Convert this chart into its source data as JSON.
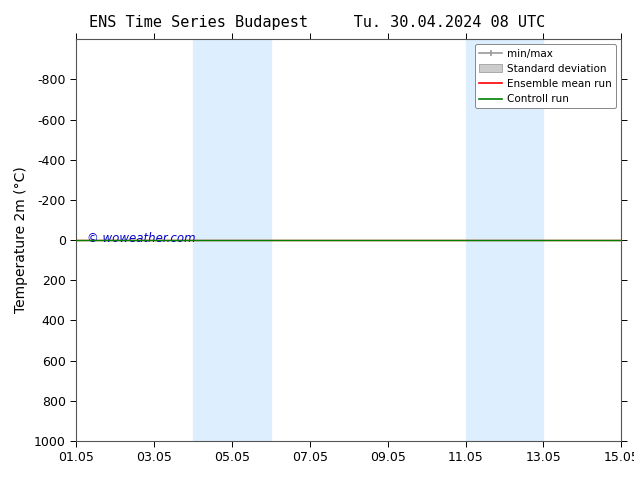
{
  "title_left": "ENS Time Series Budapest",
  "title_right": "Tu. 30.04.2024 08 UTC",
  "ylabel": "Temperature 2m (°C)",
  "ylim": [
    -1000,
    1000
  ],
  "yticks": [
    -800,
    -600,
    -400,
    -200,
    0,
    200,
    400,
    600,
    800,
    1000
  ],
  "xticks_labels": [
    "01.05",
    "03.05",
    "05.05",
    "07.05",
    "09.05",
    "11.05",
    "13.05",
    "15.05"
  ],
  "xticks_pos": [
    0,
    2,
    4,
    6,
    8,
    10,
    12,
    14
  ],
  "xlim": [
    0,
    14
  ],
  "shaded_regions": [
    [
      3.0,
      4.0
    ],
    [
      4.0,
      5.0
    ],
    [
      10.0,
      11.0
    ],
    [
      11.0,
      12.0
    ]
  ],
  "shaded_color": "#ddeeff",
  "line_y": 0,
  "ensemble_mean_color": "#ff0000",
  "control_run_color": "#008000",
  "minmax_color": "#999999",
  "stddev_color": "#cccccc",
  "watermark": "© woweather.com",
  "watermark_color": "#0000cc",
  "background_color": "#ffffff",
  "title_fontsize": 11,
  "tick_fontsize": 9,
  "ylabel_fontsize": 10
}
